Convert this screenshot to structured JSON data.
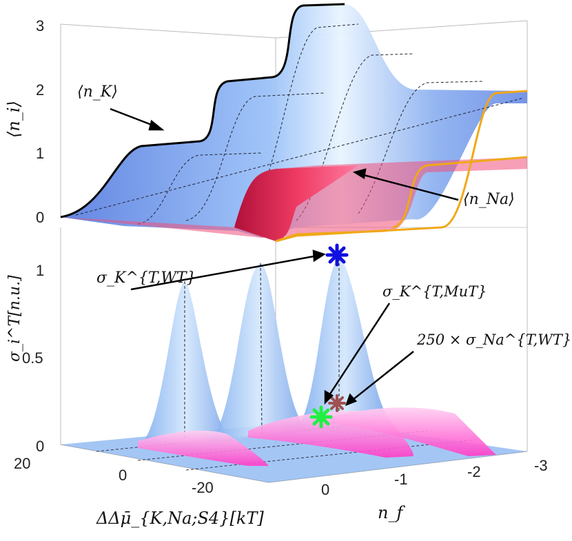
{
  "colors": {
    "k_surface": "#7fa8f0",
    "na_surface": "#e8305a",
    "orange_edge": "#f0a818",
    "sigma_k": "#8cbcf4",
    "sigma_na": "#ff5cd0",
    "star_blue": "#1010e0",
    "star_green": "#22ee44",
    "star_brown": "#a05050"
  },
  "top_panel": {
    "ylabel": "⟨n_i⟩",
    "yticks": [
      "3",
      "2",
      "1",
      "0"
    ],
    "label_nk": "⟨n_K⟩",
    "label_nna": "⟨n_Na⟩"
  },
  "bottom_panel": {
    "ylabel": "σ_i^T[n.u.]",
    "yticks": [
      "1",
      "0.5",
      "0"
    ],
    "label_sigma_k_wt": "σ_K^{T,WT}",
    "label_sigma_k_mut": "σ_K^{T,MuT}",
    "label_sigma_na": "250 × σ_Na^{T,WT}"
  },
  "axes": {
    "xlabel": "ΔΔμ̄_{K,Na;S4}[kT]",
    "x_ticks": [
      "20",
      "0",
      "-20"
    ],
    "nf_label": "n_f",
    "nf_ticks": [
      "0",
      "-1",
      "-2",
      "-3"
    ]
  },
  "chart_data": [
    {
      "type": "area",
      "description_series": "surface",
      "series": [
        {
          "name": "⟨n_K⟩",
          "x": [
            0,
            -1,
            -2,
            -3
          ],
          "values": [
            1,
            2,
            3,
            3
          ]
        },
        {
          "name": "⟨n_Na⟩",
          "x": [
            0,
            -1,
            -2,
            -3
          ],
          "values": [
            0,
            0,
            1,
            1
          ]
        }
      ],
      "ylabel": "⟨n_i⟩",
      "ylim": [
        0,
        3
      ]
    },
    {
      "type": "area",
      "series": [
        {
          "name": "σ_K^{T,WT}",
          "x": [
            0,
            -1,
            -2
          ],
          "values": [
            0.85,
            0.95,
            1.0
          ]
        },
        {
          "name": "250 × σ_Na^{T,WT}",
          "x": [
            0,
            -1,
            -2
          ],
          "values": [
            0.05,
            0.08,
            0.1
          ]
        }
      ],
      "ylabel": "σ_i^T[n.u.]",
      "ylim": [
        0,
        1
      ]
    }
  ]
}
